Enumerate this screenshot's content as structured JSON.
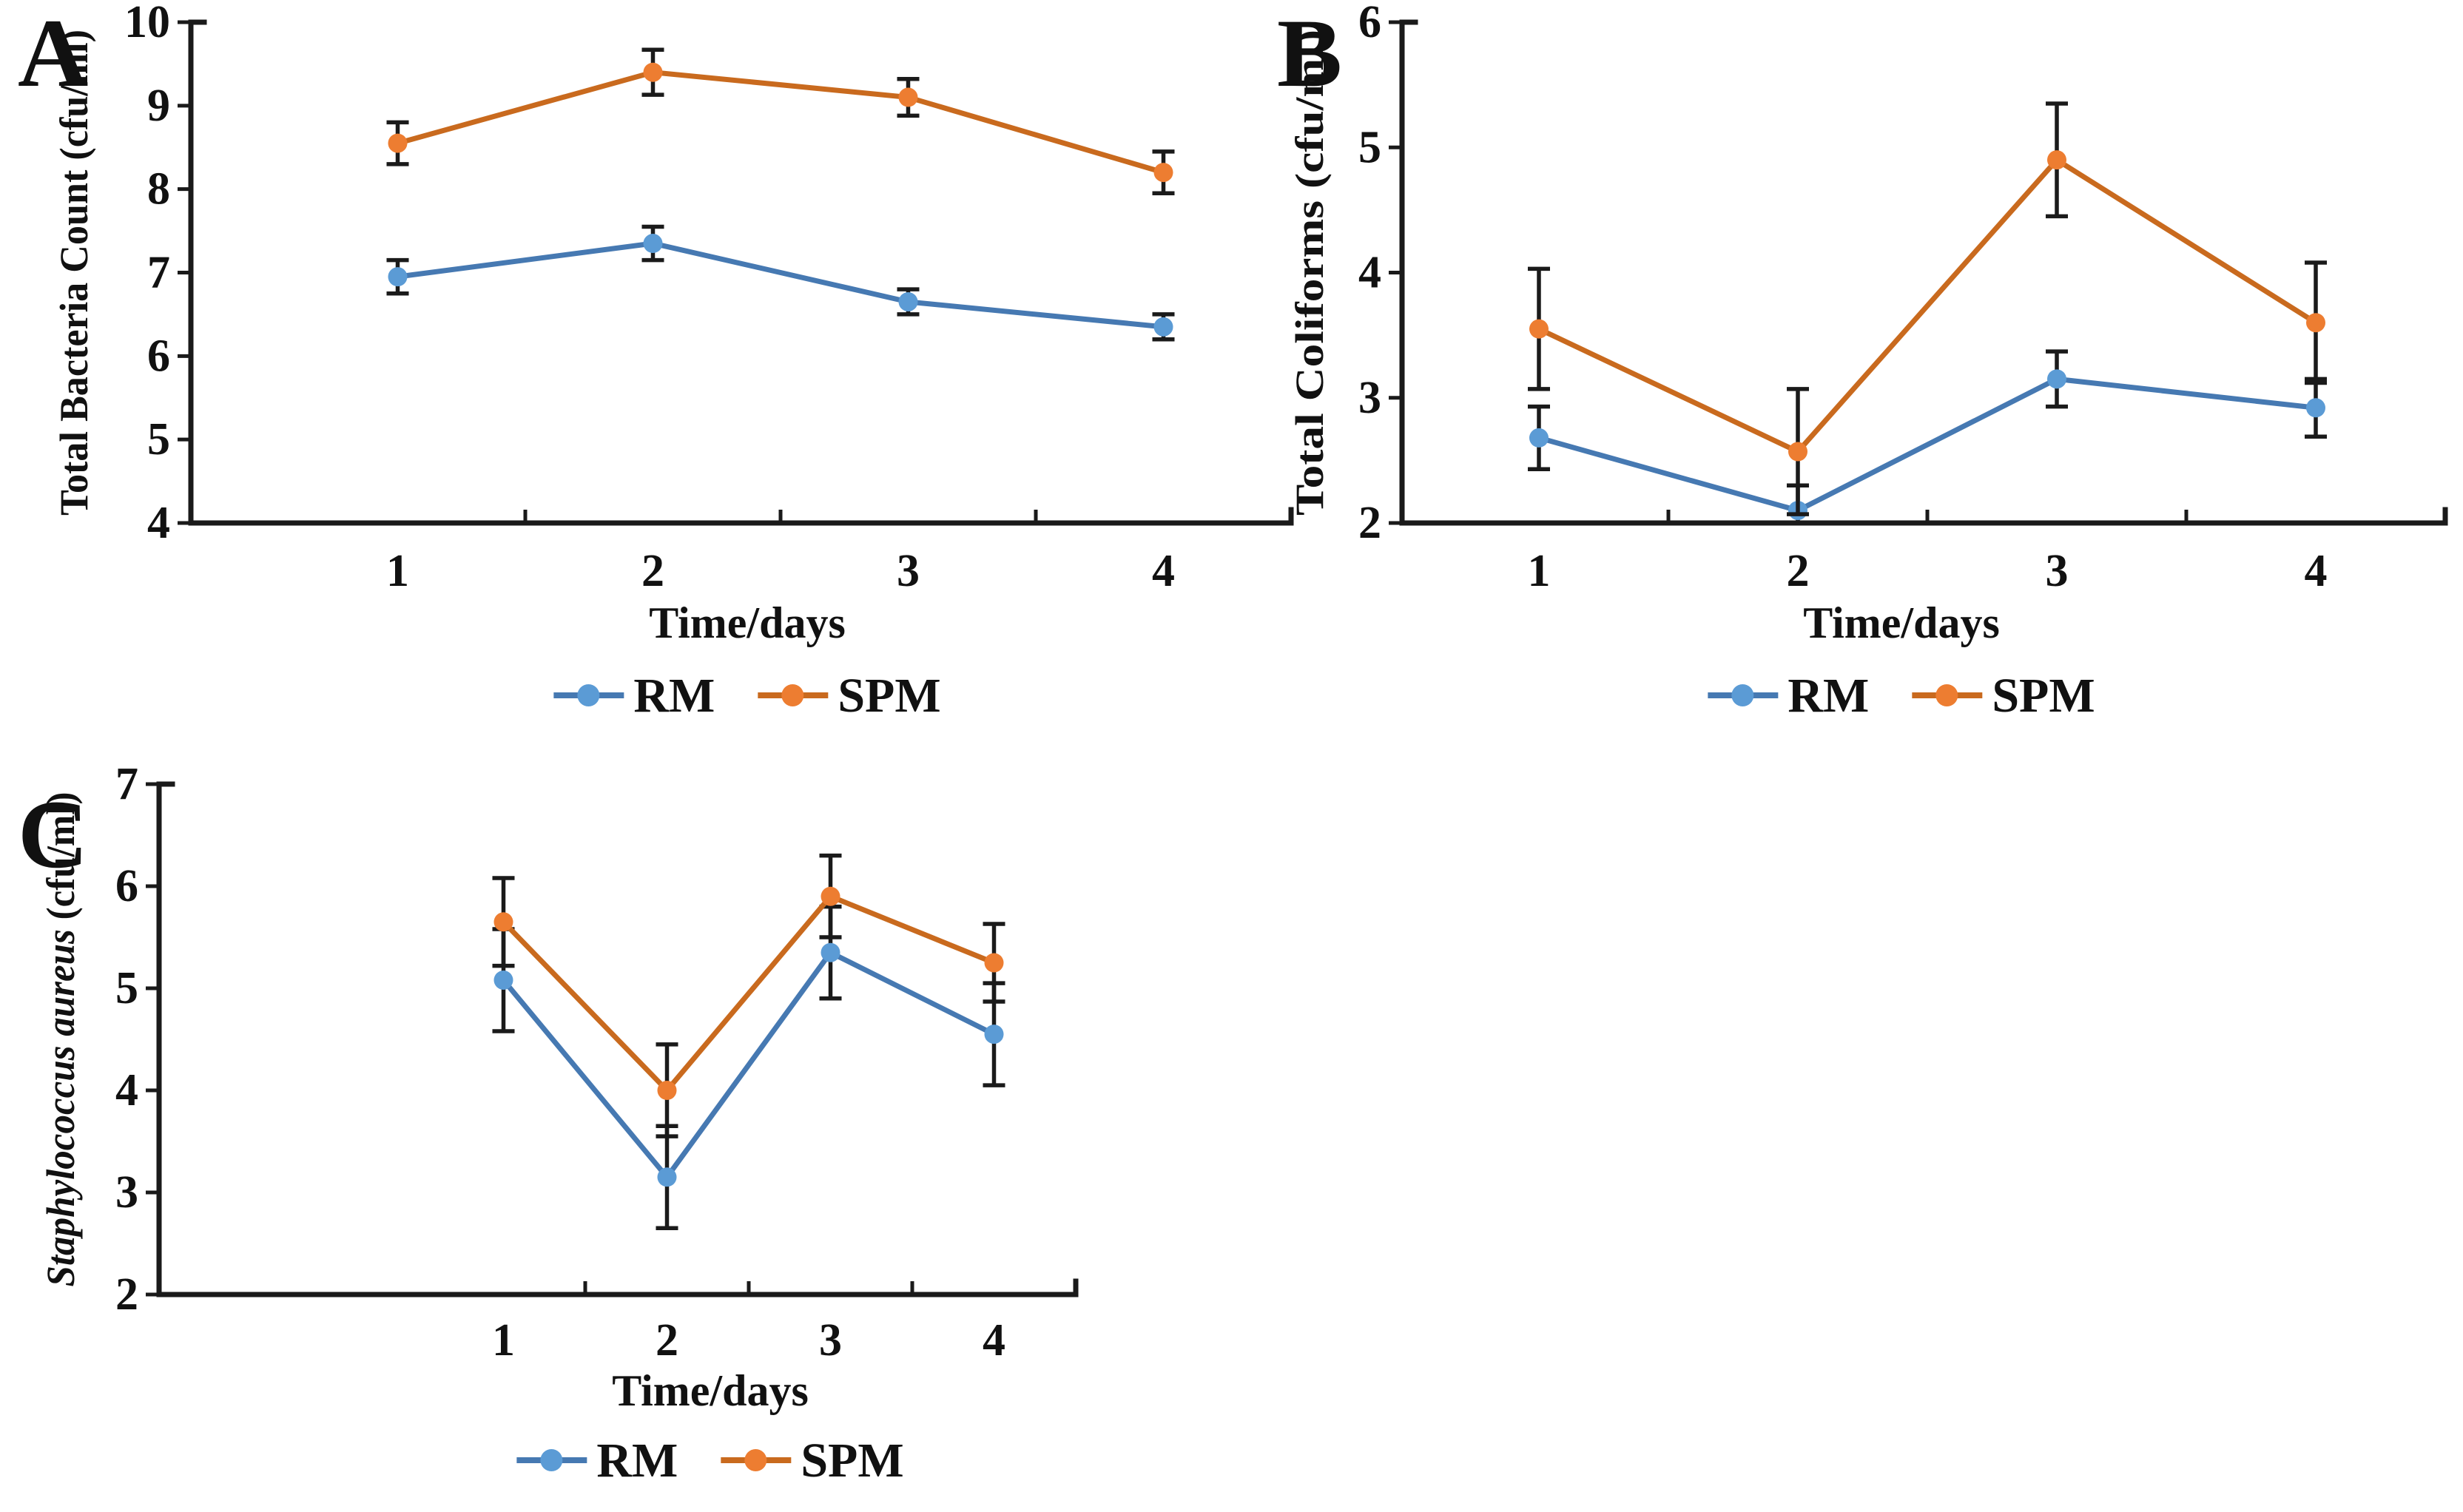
{
  "figure": {
    "background": "#ffffff",
    "text_color": "#111111",
    "axis_color": "#1a1a1a",
    "xlabel": "Time/days",
    "legend_labels": [
      "RM",
      "SPM"
    ],
    "colors": {
      "rm_marker": "#5B9BD5",
      "rm_line": "#4679B2",
      "spm_marker": "#ED7D31",
      "spm_line": "#C96A1E"
    }
  },
  "chart_data": [
    {
      "type": "line",
      "panel_label": "A",
      "ylabel": "Total Bacteria Count (cfu/ml)",
      "ylabel_parts": [
        {
          "text": "Total Bacteria Count (cfu/ml)",
          "italic": false
        }
      ],
      "xlabel": "Time/days",
      "categories": [
        "1",
        "2",
        "3",
        "4"
      ],
      "ylim": [
        4,
        10
      ],
      "yticks": [
        4,
        5,
        6,
        7,
        8,
        9,
        10
      ],
      "grid": false,
      "legend_position": "bottom",
      "error_bars": true,
      "series": [
        {
          "name": "RM",
          "marker_color": "#5B9BD5",
          "line_color": "#4679B2",
          "values": [
            6.95,
            7.35,
            6.65,
            6.35
          ],
          "errors": [
            0.2,
            0.2,
            0.15,
            0.15
          ]
        },
        {
          "name": "SPM",
          "marker_color": "#ED7D31",
          "line_color": "#C96A1E",
          "values": [
            8.55,
            9.4,
            9.1,
            8.2
          ],
          "errors": [
            0.25,
            0.27,
            0.22,
            0.25
          ]
        }
      ]
    },
    {
      "type": "line",
      "panel_label": "B",
      "ylabel": "Total Coliforms (cfu/ml)",
      "ylabel_parts": [
        {
          "text": "Total Coliforms (cfu/ml)",
          "italic": false
        }
      ],
      "xlabel": "Time/days",
      "categories": [
        "1",
        "2",
        "3",
        "4"
      ],
      "ylim": [
        2,
        6
      ],
      "yticks": [
        2,
        3,
        4,
        5,
        6
      ],
      "grid": false,
      "legend_position": "bottom",
      "error_bars": true,
      "series": [
        {
          "name": "RM",
          "marker_color": "#5B9BD5",
          "line_color": "#4679B2",
          "values": [
            2.68,
            2.1,
            3.15,
            2.92
          ],
          "errors": [
            0.25,
            0.2,
            0.22,
            0.23
          ]
        },
        {
          "name": "SPM",
          "marker_color": "#ED7D31",
          "line_color": "#C96A1E",
          "values": [
            3.55,
            2.57,
            4.9,
            3.6
          ],
          "errors": [
            0.48,
            0.5,
            0.45,
            0.48
          ]
        }
      ]
    },
    {
      "type": "line",
      "panel_label": "C",
      "ylabel": "Staphylococcus aureus (cfu/ml)",
      "ylabel_parts": [
        {
          "text": "Staphylococcus aureus",
          "italic": true
        },
        {
          "text": " (cfu/ml)",
          "italic": false
        }
      ],
      "xlabel": "Time/days",
      "categories": [
        "1",
        "2",
        "3",
        "4"
      ],
      "ylim": [
        2,
        7
      ],
      "yticks": [
        2,
        3,
        4,
        5,
        6,
        7
      ],
      "grid": false,
      "legend_position": "bottom",
      "error_bars": true,
      "series": [
        {
          "name": "RM",
          "marker_color": "#5B9BD5",
          "line_color": "#4679B2",
          "values": [
            5.08,
            3.15,
            5.35,
            4.55
          ],
          "errors": [
            0.5,
            0.5,
            0.45,
            0.5
          ]
        },
        {
          "name": "SPM",
          "marker_color": "#ED7D31",
          "line_color": "#C96A1E",
          "values": [
            5.65,
            4.0,
            5.9,
            5.25
          ],
          "errors": [
            0.43,
            0.45,
            0.4,
            0.38
          ]
        }
      ]
    }
  ]
}
